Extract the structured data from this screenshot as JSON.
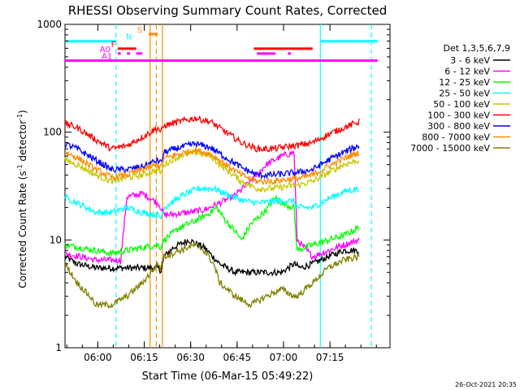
{
  "chart_data": {
    "type": "line",
    "title": "RHESSI Observing Summary Count Rates, Corrected",
    "xlabel": "Start Time (06-Mar-15 05:49:22)",
    "ylabel": "Corrected Count Rate (s",
    "ylabel_sup1": "-1",
    "ylabel_mid": " detector",
    "ylabel_sup2": "-1",
    "ylabel_end": ")",
    "x_unit": "minutes since 05:49:22",
    "xlim": [
      0,
      105
    ],
    "ylim": [
      1,
      1000
    ],
    "yscale": "log",
    "x_ticks": [
      {
        "label": "06:00",
        "x": 10.6
      },
      {
        "label": "06:15",
        "x": 25.6
      },
      {
        "label": "06:30",
        "x": 40.6
      },
      {
        "label": "06:45",
        "x": 55.6
      },
      {
        "label": "07:00",
        "x": 70.6
      },
      {
        "label": "07:15",
        "x": 85.6
      }
    ],
    "y_ticks": [
      {
        "label": "1",
        "v": 1
      },
      {
        "label": "10",
        "v": 10
      },
      {
        "label": "100",
        "v": 100
      },
      {
        "label": "1000",
        "v": 1000
      }
    ],
    "legend_title": "Det 1,3,5,6,7,9",
    "legend_position": "right",
    "footer": "26-Oct-2021 20:35",
    "series": [
      {
        "name": "3 - 6 keV",
        "color": "#000000",
        "points": [
          [
            0,
            7
          ],
          [
            4,
            6
          ],
          [
            10,
            5.5
          ],
          [
            15,
            5.5
          ],
          [
            19,
            5.5
          ],
          [
            25,
            5.5
          ],
          [
            30,
            5.5
          ],
          [
            31,
            5.2
          ],
          [
            32,
            7
          ],
          [
            35,
            8.5
          ],
          [
            40,
            10
          ],
          [
            45,
            8.5
          ],
          [
            50,
            6
          ],
          [
            55,
            5
          ],
          [
            60,
            5
          ],
          [
            65,
            5
          ],
          [
            70,
            5
          ],
          [
            74,
            6
          ],
          [
            76,
            5.5
          ],
          [
            80,
            6
          ],
          [
            85,
            7
          ],
          [
            90,
            8
          ],
          [
            95,
            8
          ]
        ]
      },
      {
        "name": "6 - 12 keV",
        "color": "#ff00ff",
        "points": [
          [
            0,
            7.5
          ],
          [
            10,
            6.5
          ],
          [
            15,
            6.5
          ],
          [
            18,
            6.5
          ],
          [
            20,
            25
          ],
          [
            25,
            27
          ],
          [
            30,
            22
          ],
          [
            31,
            20
          ],
          [
            32,
            17
          ],
          [
            40,
            18
          ],
          [
            45,
            19
          ],
          [
            50,
            22
          ],
          [
            55,
            26
          ],
          [
            60,
            35
          ],
          [
            65,
            50
          ],
          [
            70,
            60
          ],
          [
            74,
            65
          ],
          [
            75,
            10
          ],
          [
            80,
            7
          ],
          [
            90,
            9
          ],
          [
            95,
            10
          ]
        ]
      },
      {
        "name": "12 - 25 keV",
        "color": "#00ff00",
        "points": [
          [
            0,
            9
          ],
          [
            10,
            8
          ],
          [
            15,
            7.5
          ],
          [
            20,
            8
          ],
          [
            25,
            8.5
          ],
          [
            30,
            9
          ],
          [
            31,
            8.5
          ],
          [
            32,
            10
          ],
          [
            37,
            13
          ],
          [
            42,
            15
          ],
          [
            47,
            18
          ],
          [
            49,
            20
          ],
          [
            52,
            15
          ],
          [
            55,
            12
          ],
          [
            57,
            10
          ],
          [
            60,
            14
          ],
          [
            65,
            19
          ],
          [
            68,
            25
          ],
          [
            70,
            22
          ],
          [
            74,
            20
          ],
          [
            75,
            8
          ],
          [
            80,
            9
          ],
          [
            90,
            11
          ],
          [
            95,
            13
          ]
        ]
      },
      {
        "name": "25 - 50 keV",
        "color": "#00ffff",
        "points": [
          [
            0,
            25
          ],
          [
            4,
            22
          ],
          [
            10,
            18
          ],
          [
            15,
            18
          ],
          [
            20,
            20
          ],
          [
            25,
            18
          ],
          [
            30,
            17
          ],
          [
            31,
            16
          ],
          [
            32,
            20
          ],
          [
            38,
            26
          ],
          [
            43,
            30
          ],
          [
            48,
            30
          ],
          [
            53,
            26
          ],
          [
            58,
            23
          ],
          [
            63,
            22
          ],
          [
            68,
            23
          ],
          [
            74,
            23
          ],
          [
            75,
            20
          ],
          [
            80,
            20
          ],
          [
            85,
            24
          ],
          [
            90,
            28
          ],
          [
            95,
            30
          ]
        ]
      },
      {
        "name": "50 - 100 keV",
        "color": "#c8c800",
        "points": [
          [
            0,
            55
          ],
          [
            4,
            50
          ],
          [
            10,
            40
          ],
          [
            15,
            35
          ],
          [
            20,
            38
          ],
          [
            25,
            40
          ],
          [
            30,
            45
          ],
          [
            31,
            42
          ],
          [
            32,
            50
          ],
          [
            37,
            60
          ],
          [
            42,
            65
          ],
          [
            47,
            60
          ],
          [
            52,
            45
          ],
          [
            57,
            35
          ],
          [
            62,
            30
          ],
          [
            67,
            30
          ],
          [
            74,
            32
          ],
          [
            75,
            32
          ],
          [
            80,
            35
          ],
          [
            85,
            42
          ],
          [
            90,
            50
          ],
          [
            95,
            55
          ]
        ]
      },
      {
        "name": "100 - 300 keV",
        "color": "#ff0000",
        "points": [
          [
            0,
            120
          ],
          [
            4,
            110
          ],
          [
            10,
            85
          ],
          [
            15,
            70
          ],
          [
            20,
            75
          ],
          [
            25,
            90
          ],
          [
            30,
            110
          ],
          [
            31,
            100
          ],
          [
            32,
            115
          ],
          [
            37,
            125
          ],
          [
            42,
            135
          ],
          [
            47,
            125
          ],
          [
            52,
            100
          ],
          [
            57,
            80
          ],
          [
            62,
            70
          ],
          [
            67,
            70
          ],
          [
            74,
            75
          ],
          [
            75,
            75
          ],
          [
            80,
            80
          ],
          [
            85,
            95
          ],
          [
            90,
            110
          ],
          [
            95,
            125
          ]
        ]
      },
      {
        "name": "300 - 800 keV",
        "color": "#0000ff",
        "points": [
          [
            0,
            78
          ],
          [
            4,
            70
          ],
          [
            10,
            55
          ],
          [
            15,
            45
          ],
          [
            20,
            45
          ],
          [
            25,
            48
          ],
          [
            30,
            55
          ],
          [
            31,
            52
          ],
          [
            32,
            65
          ],
          [
            37,
            72
          ],
          [
            42,
            78
          ],
          [
            47,
            72
          ],
          [
            52,
            58
          ],
          [
            57,
            47
          ],
          [
            62,
            40
          ],
          [
            67,
            40
          ],
          [
            74,
            42
          ],
          [
            75,
            42
          ],
          [
            80,
            45
          ],
          [
            85,
            55
          ],
          [
            90,
            65
          ],
          [
            95,
            75
          ]
        ]
      },
      {
        "name": "800 - 7000 keV",
        "color": "#ff8c00",
        "points": [
          [
            0,
            65
          ],
          [
            4,
            58
          ],
          [
            10,
            45
          ],
          [
            15,
            38
          ],
          [
            20,
            40
          ],
          [
            25,
            45
          ],
          [
            30,
            50
          ],
          [
            31,
            47
          ],
          [
            32,
            57
          ],
          [
            37,
            63
          ],
          [
            42,
            68
          ],
          [
            47,
            63
          ],
          [
            52,
            50
          ],
          [
            57,
            40
          ],
          [
            62,
            35
          ],
          [
            67,
            35
          ],
          [
            74,
            37
          ],
          [
            75,
            37
          ],
          [
            80,
            40
          ],
          [
            85,
            48
          ],
          [
            90,
            57
          ],
          [
            95,
            65
          ]
        ]
      },
      {
        "name": "7000 - 15000 keV",
        "color": "#808000",
        "points": [
          [
            0,
            6
          ],
          [
            4,
            4
          ],
          [
            8,
            3
          ],
          [
            10,
            2.5
          ],
          [
            15,
            2.5
          ],
          [
            20,
            3
          ],
          [
            25,
            4
          ],
          [
            30,
            6
          ],
          [
            31,
            5.5
          ],
          [
            32,
            7
          ],
          [
            37,
            8
          ],
          [
            42,
            9
          ],
          [
            45,
            8
          ],
          [
            48,
            6
          ],
          [
            50,
            4
          ],
          [
            55,
            3
          ],
          [
            60,
            2.5
          ],
          [
            65,
            3
          ],
          [
            70,
            3.5
          ],
          [
            74,
            3
          ],
          [
            75,
            3
          ],
          [
            80,
            4
          ],
          [
            85,
            5.5
          ],
          [
            90,
            6.5
          ],
          [
            95,
            7
          ]
        ]
      }
    ],
    "flags": [
      {
        "label": "N",
        "color": "#00ffff",
        "y_pct": 0.052,
        "segments": [
          [
            0,
            16.5
          ],
          [
            82.5,
            101
          ]
        ]
      },
      {
        "label": "F",
        "color": "#ff0000",
        "y_pct": 0.075,
        "segments": [
          [
            17,
            23
          ],
          [
            61,
            80
          ]
        ]
      },
      {
        "label": "A0",
        "color": "#ff00ff",
        "y_pct": 0.09,
        "segments": [
          [
            17,
            18
          ],
          [
            20,
            21
          ],
          [
            23,
            25
          ],
          [
            62,
            68
          ],
          [
            72,
            73
          ]
        ]
      },
      {
        "label": "A1",
        "color": "#ff00ff",
        "y_pct": 0.112,
        "segments": [
          [
            0,
            101
          ]
        ]
      },
      {
        "label": "S",
        "color": "#ff8c00",
        "y_pct": 0.03,
        "segments": [
          [
            27,
            30
          ]
        ]
      }
    ],
    "markers": [
      {
        "x": 16.5,
        "color": "#00ffff",
        "style": "dashed"
      },
      {
        "x": 82.5,
        "color": "#00ffff",
        "style": "solid"
      },
      {
        "x": 99.0,
        "color": "#00ffff",
        "style": "dashed"
      },
      {
        "x": 27.5,
        "color": "#ff8c00",
        "style": "solid"
      },
      {
        "x": 29.5,
        "color": "#ff8c00",
        "style": "dashed"
      },
      {
        "x": 31.5,
        "color": "#ff8c00",
        "style": "solid"
      }
    ]
  }
}
